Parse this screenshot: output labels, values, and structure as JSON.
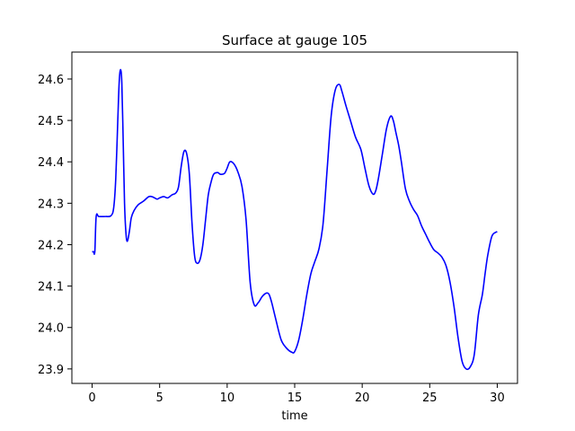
{
  "chart_data": {
    "type": "line",
    "title": "Surface at gauge 105",
    "xlabel": "time",
    "ylabel": "",
    "xlim": [
      -1.5,
      31.5
    ],
    "ylim": [
      23.865,
      24.665
    ],
    "xticks": [
      0,
      5,
      10,
      15,
      20,
      25,
      30
    ],
    "xtick_labels": [
      "0",
      "5",
      "10",
      "15",
      "20",
      "25",
      "30"
    ],
    "yticks": [
      23.9,
      24.0,
      24.1,
      24.2,
      24.3,
      24.4,
      24.5,
      24.6
    ],
    "ytick_labels": [
      "23.9",
      "24.0",
      "24.1",
      "24.2",
      "24.3",
      "24.4",
      "24.5",
      "24.6"
    ],
    "grid": false,
    "series": [
      {
        "color": "#0000ff",
        "x": [
          0,
          0.1,
          0.2,
          0.3,
          0.5,
          1.0,
          1.4,
          1.6,
          1.75,
          1.9,
          2.0,
          2.1,
          2.2,
          2.3,
          2.4,
          2.5,
          2.6,
          2.75,
          2.9,
          3.1,
          3.4,
          3.8,
          4.2,
          4.5,
          4.8,
          5.0,
          5.3,
          5.6,
          5.9,
          6.2,
          6.4,
          6.6,
          6.8,
          7.0,
          7.2,
          7.4,
          7.6,
          7.8,
          8.0,
          8.2,
          8.4,
          8.6,
          8.8,
          9.0,
          9.3,
          9.5,
          9.8,
          10.0,
          10.2,
          10.5,
          10.8,
          11.1,
          11.4,
          11.7,
          12.0,
          12.3,
          12.6,
          12.9,
          13.1,
          13.3,
          13.6,
          14.0,
          14.4,
          14.8,
          15.0,
          15.3,
          15.6,
          15.9,
          16.2,
          16.5,
          16.8,
          17.1,
          17.4,
          17.7,
          18.0,
          18.3,
          18.5,
          18.8,
          19.1,
          19.5,
          19.9,
          20.2,
          20.5,
          20.8,
          21.0,
          21.2,
          21.5,
          21.8,
          22.1,
          22.3,
          22.5,
          22.7,
          22.9,
          23.2,
          23.5,
          23.8,
          24.1,
          24.4,
          24.7,
          25.0,
          25.3,
          25.6,
          25.9,
          26.2,
          26.5,
          26.8,
          27.1,
          27.4,
          27.7,
          28.0,
          28.3,
          28.6,
          28.9,
          29.1,
          29.3,
          29.6,
          29.9,
          30.0
        ],
        "y": [
          24.183,
          24.183,
          24.183,
          24.268,
          24.268,
          24.268,
          24.27,
          24.29,
          24.36,
          24.5,
          24.59,
          24.623,
          24.59,
          24.45,
          24.3,
          24.23,
          24.208,
          24.23,
          24.265,
          24.282,
          24.296,
          24.305,
          24.316,
          24.315,
          24.31,
          24.313,
          24.316,
          24.313,
          24.32,
          24.325,
          24.34,
          24.39,
          24.425,
          24.42,
          24.37,
          24.25,
          24.17,
          24.155,
          24.165,
          24.2,
          24.26,
          24.32,
          24.35,
          24.37,
          24.374,
          24.37,
          24.372,
          24.385,
          24.4,
          24.395,
          24.375,
          24.34,
          24.26,
          24.11,
          24.055,
          24.06,
          24.075,
          24.083,
          24.08,
          24.06,
          24.02,
          23.97,
          23.95,
          23.94,
          23.942,
          23.97,
          24.02,
          24.08,
          24.13,
          24.16,
          24.19,
          24.25,
          24.38,
          24.51,
          24.573,
          24.587,
          24.57,
          24.535,
          24.503,
          24.46,
          24.43,
          24.385,
          24.342,
          24.322,
          24.33,
          24.36,
          24.42,
          24.48,
          24.51,
          24.5,
          24.47,
          24.44,
          24.4,
          24.335,
          24.305,
          24.285,
          24.27,
          24.245,
          24.225,
          24.205,
          24.188,
          24.18,
          24.17,
          24.15,
          24.11,
          24.05,
          23.975,
          23.918,
          23.9,
          23.905,
          23.935,
          24.03,
          24.08,
          24.13,
          24.175,
          24.22,
          24.23,
          24.231
        ]
      }
    ]
  }
}
